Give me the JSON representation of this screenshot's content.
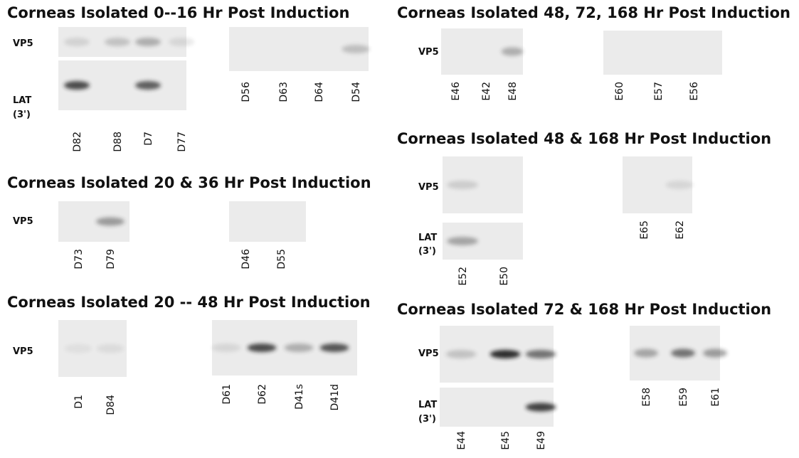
{
  "panels": [
    {
      "title": "Corneas Isolated 0--16 Hr Post Induction",
      "blots": [
        {
          "rows": [
            [
              "VP5"
            ],
            [
              "LAT",
              "(3')"
            ]
          ],
          "lanes": [
            "D82",
            "D88",
            "D7",
            "D77"
          ]
        },
        {
          "rows": [],
          "lanes": [
            "D56",
            "D63",
            "D64",
            "D54"
          ]
        }
      ]
    },
    {
      "title": "Corneas Isolated 20 & 36 Hr Post Induction",
      "blots": [
        {
          "rows": [
            [
              "VP5"
            ]
          ],
          "lanes": [
            "D73",
            "D79"
          ]
        },
        {
          "rows": [],
          "lanes": [
            "D46",
            "D55"
          ]
        }
      ]
    },
    {
      "title": "Corneas Isolated 20 -- 48 Hr Post Induction",
      "blots": [
        {
          "rows": [
            [
              "VP5"
            ]
          ],
          "lanes": [
            "D1",
            "D84"
          ]
        },
        {
          "rows": [],
          "lanes": [
            "D61",
            "D62",
            "D41s",
            "D41d"
          ]
        }
      ]
    },
    {
      "title": "Corneas Isolated 48, 72,  168 Hr Post Induction",
      "blots": [
        {
          "rows": [
            [
              "VP5"
            ]
          ],
          "lanes": [
            "E46",
            "E42",
            "E48"
          ]
        },
        {
          "rows": [],
          "lanes": [
            "E60",
            "E57",
            "E56"
          ]
        }
      ]
    },
    {
      "title": "Corneas Isolated 48 & 168  Hr Post Induction",
      "blots": [
        {
          "rows": [
            [
              "VP5"
            ],
            [
              "LAT",
              "(3')"
            ]
          ],
          "lanes": [
            "E52",
            "E50"
          ]
        },
        {
          "rows": [],
          "lanes": [
            "E65",
            "E62"
          ]
        }
      ]
    },
    {
      "title": "Corneas Isolated 72 & 168  Hr Post Induction",
      "blots": [
        {
          "rows": [
            [
              "VP5"
            ],
            [
              "LAT",
              "(3')"
            ]
          ],
          "lanes": [
            "E44",
            "E45",
            "E49"
          ]
        },
        {
          "rows": [],
          "lanes": [
            "E58",
            "E59",
            "E61"
          ]
        }
      ]
    }
  ]
}
